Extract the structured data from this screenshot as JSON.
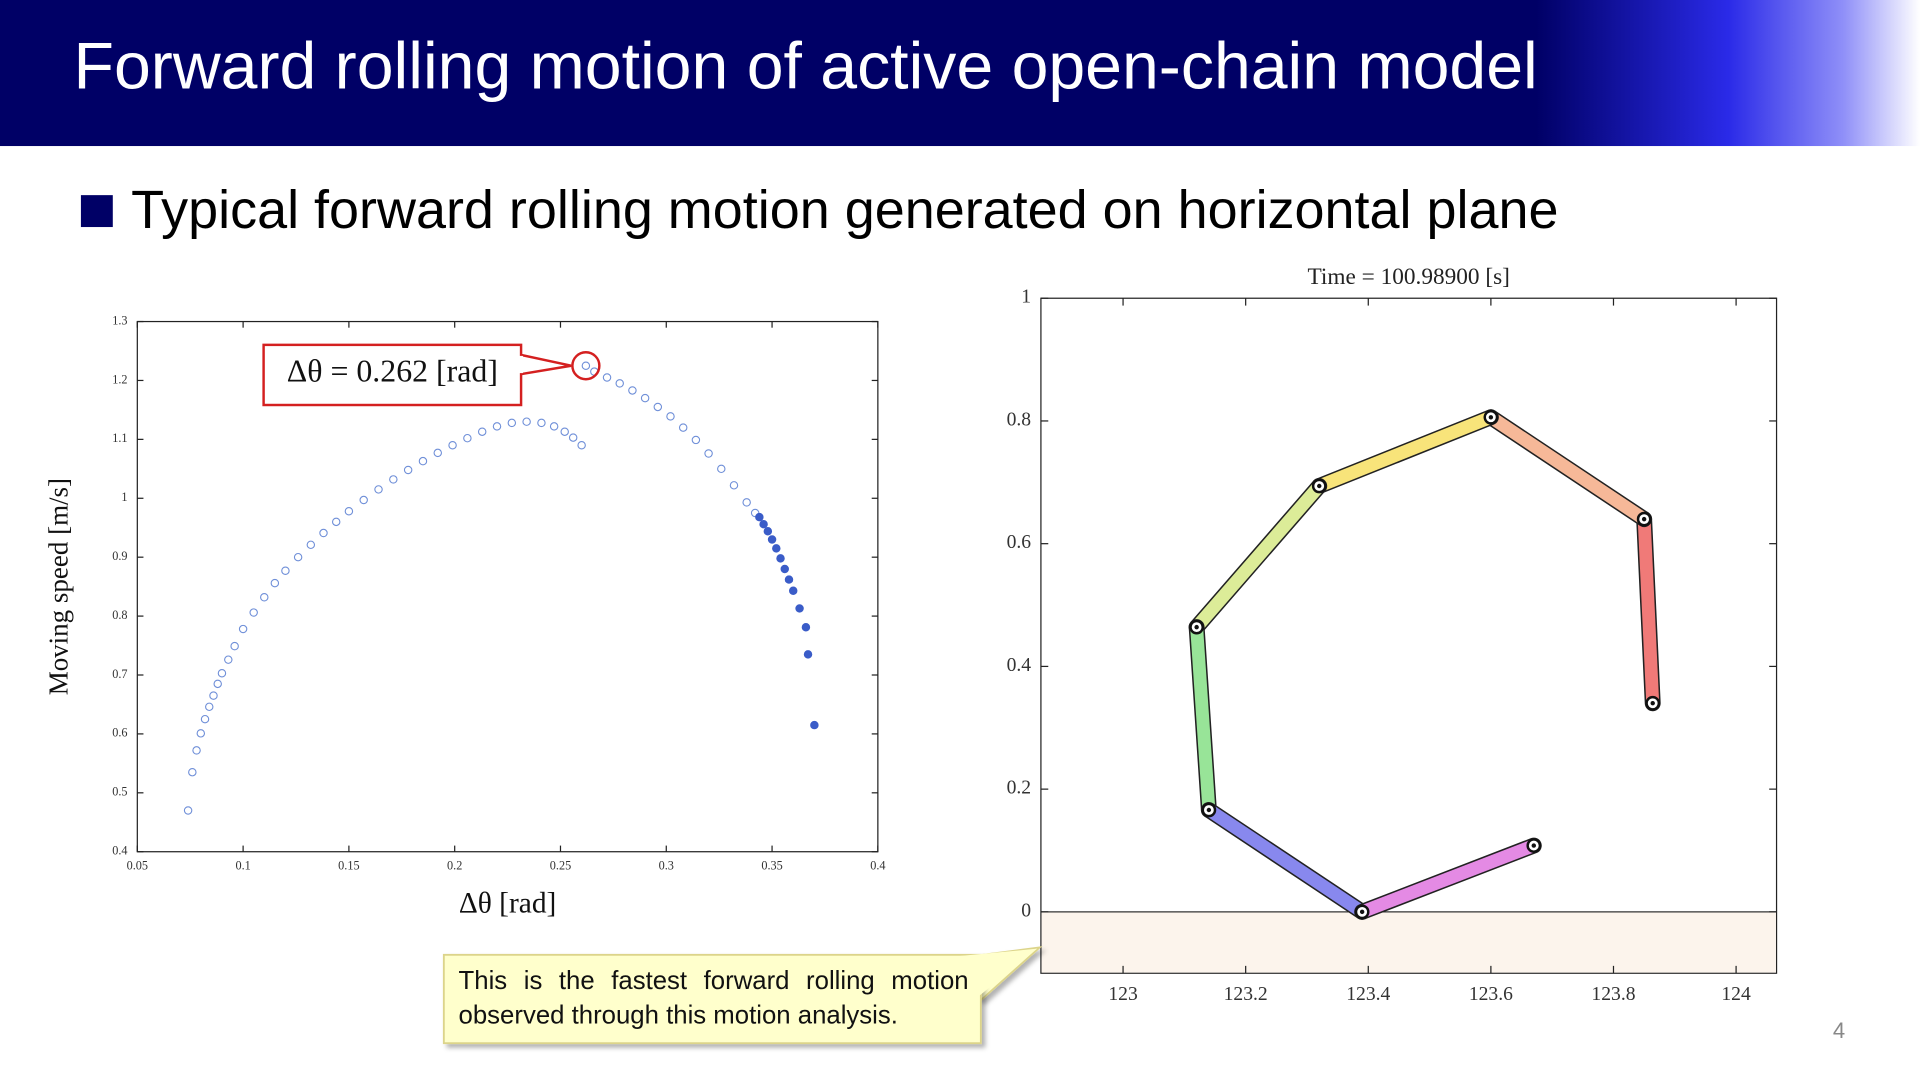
{
  "header": {
    "title": "Forward rolling motion of active open-chain model",
    "bullet": "Typical forward rolling motion generated on horizontal plane"
  },
  "chart_data": [
    {
      "type": "scatter",
      "xlabel": "Δθ [rad]",
      "ylabel": "Moving speed [m/s]",
      "annotation": "Δθ = 0.262 [rad]",
      "annotation_color": "#d42020",
      "xlim": [
        0.05,
        0.4
      ],
      "ylim": [
        0.4,
        1.3
      ],
      "xticks": [
        0.05,
        0.1,
        0.15,
        0.2,
        0.25,
        0.3,
        0.35,
        0.4
      ],
      "yticks": [
        0.4,
        0.5,
        0.6,
        0.7,
        0.8,
        0.9,
        1,
        1.1,
        1.2,
        1.3
      ],
      "series": [
        {
          "marker": "open",
          "color": "#6f8fd8",
          "x": [
            0.074,
            0.076,
            0.078,
            0.08,
            0.082,
            0.084,
            0.086,
            0.088,
            0.09,
            0.093,
            0.096,
            0.1,
            0.105,
            0.11,
            0.115,
            0.12,
            0.126,
            0.132,
            0.138,
            0.144,
            0.15,
            0.157,
            0.164,
            0.171,
            0.178,
            0.185,
            0.192,
            0.199,
            0.206,
            0.213,
            0.22,
            0.227,
            0.234,
            0.241,
            0.247,
            0.252,
            0.256,
            0.26,
            0.262,
            0.266,
            0.272,
            0.278,
            0.284,
            0.29,
            0.296,
            0.302,
            0.308,
            0.314,
            0.32,
            0.326,
            0.332,
            0.338,
            0.342
          ],
          "values": [
            0.47,
            0.535,
            0.572,
            0.601,
            0.625,
            0.646,
            0.665,
            0.685,
            0.703,
            0.726,
            0.749,
            0.778,
            0.806,
            0.832,
            0.856,
            0.877,
            0.9,
            0.921,
            0.941,
            0.96,
            0.978,
            0.997,
            1.015,
            1.032,
            1.048,
            1.063,
            1.077,
            1.09,
            1.102,
            1.113,
            1.122,
            1.128,
            1.13,
            1.128,
            1.122,
            1.113,
            1.103,
            1.09,
            1.225,
            1.215,
            1.205,
            1.195,
            1.183,
            1.17,
            1.155,
            1.139,
            1.12,
            1.099,
            1.076,
            1.05,
            1.022,
            0.993,
            0.975
          ]
        },
        {
          "marker": "filled",
          "color": "#3a5cc8",
          "x": [
            0.344,
            0.346,
            0.348,
            0.35,
            0.352,
            0.354,
            0.356,
            0.358,
            0.36,
            0.363,
            0.366,
            0.367,
            0.37
          ],
          "values": [
            0.968,
            0.956,
            0.944,
            0.93,
            0.915,
            0.898,
            0.88,
            0.862,
            0.843,
            0.813,
            0.781,
            0.735,
            0.615
          ]
        }
      ]
    },
    {
      "type": "line",
      "title": "Time = 100.98900 [s]",
      "xlim": [
        122.866,
        124.066
      ],
      "ylim": [
        -0.1,
        1
      ],
      "xticks": [
        123,
        123.2,
        123.4,
        123.6,
        123.8,
        124
      ],
      "yticks": [
        0,
        0.2,
        0.4,
        0.6,
        0.8,
        1
      ],
      "x": [
        123.864,
        123.85,
        123.6,
        123.32,
        123.12,
        123.14,
        123.39,
        123.67
      ],
      "values": [
        0.34,
        0.64,
        0.806,
        0.694,
        0.464,
        0.166,
        0.0,
        0.108
      ],
      "segment_colors": [
        "#f07a78",
        "#f6b898",
        "#f8e47a",
        "#dcec98",
        "#98e498",
        "#8888ee",
        "#e48ae4"
      ],
      "ground_color": "#fcf4ec"
    }
  ],
  "callout": "This is the fastest forward rolling motion observed through this motion analysis.",
  "page_number": "4"
}
